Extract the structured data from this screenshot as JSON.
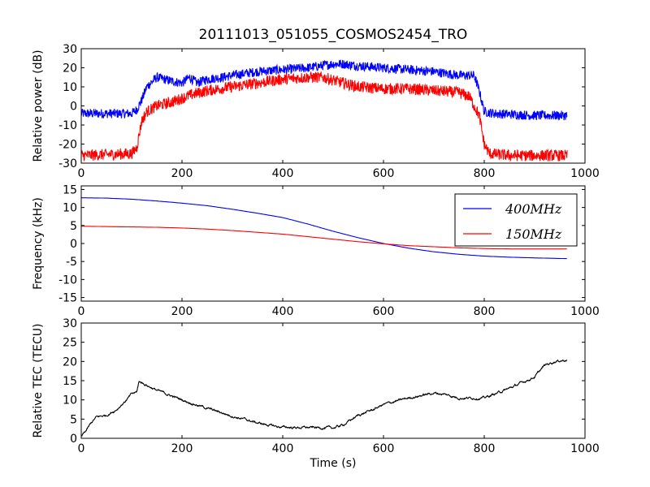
{
  "title": "20111013_051055_COSMOS2454_TRO",
  "chart_data": [
    {
      "type": "line",
      "name": "relative-power",
      "ylabel": "Relative power (dB)",
      "xlabel": "",
      "xlim": [
        0,
        1000
      ],
      "ylim": [
        -30,
        30
      ],
      "xticks": [
        0,
        200,
        400,
        600,
        800,
        1000
      ],
      "yticks": [
        -30,
        -20,
        -10,
        0,
        10,
        20,
        30
      ],
      "series": [
        {
          "color": "#0000ff",
          "noise": 2.5,
          "x": [
            0,
            100,
            110,
            120,
            130,
            150,
            180,
            200,
            215,
            230,
            250,
            280,
            300,
            350,
            400,
            450,
            500,
            520,
            550,
            600,
            650,
            700,
            750,
            780,
            790,
            800,
            820,
            900,
            965
          ],
          "y": [
            -4,
            -4,
            -2,
            3,
            10,
            15,
            13,
            12,
            15,
            12,
            14,
            15,
            16,
            18,
            19,
            20,
            22,
            22,
            21,
            20,
            19,
            18,
            16,
            16,
            8,
            -3,
            -4,
            -5,
            -5
          ]
        },
        {
          "color": "#ff0000",
          "noise": 3,
          "x": [
            0,
            100,
            110,
            120,
            130,
            150,
            180,
            200,
            220,
            250,
            300,
            350,
            400,
            450,
            480,
            520,
            550,
            600,
            650,
            700,
            750,
            770,
            790,
            800,
            810,
            850,
            900,
            965
          ],
          "y": [
            -26,
            -25,
            -22,
            -8,
            -3,
            0,
            2,
            4,
            6,
            8,
            10,
            12,
            14,
            15,
            15,
            12,
            10,
            9,
            9,
            8,
            7,
            5,
            -5,
            -20,
            -25,
            -26,
            -26,
            -26
          ]
        }
      ]
    },
    {
      "type": "line",
      "name": "frequency",
      "ylabel": "Frequency (kHz)",
      "xlabel": "",
      "xlim": [
        0,
        1000
      ],
      "ylim": [
        -16,
        16
      ],
      "xticks": [
        0,
        200,
        400,
        600,
        800,
        1000
      ],
      "yticks": [
        -15,
        -10,
        -5,
        0,
        5,
        10,
        15
      ],
      "legend": "upper-right",
      "series": [
        {
          "name": "400MHz",
          "color": "#0000ff",
          "noise": 0,
          "x": [
            0,
            50,
            100,
            150,
            200,
            250,
            300,
            350,
            400,
            450,
            500,
            550,
            600,
            650,
            700,
            750,
            800,
            850,
            900,
            965
          ],
          "y": [
            12.7,
            12.6,
            12.3,
            11.8,
            11.2,
            10.5,
            9.5,
            8.4,
            7.2,
            5.4,
            3.4,
            1.6,
            0.0,
            -1.3,
            -2.3,
            -3.0,
            -3.5,
            -3.8,
            -4.0,
            -4.2
          ]
        },
        {
          "name": "150MHz",
          "color": "#ff0000",
          "noise": 0,
          "x": [
            0,
            50,
            100,
            150,
            200,
            250,
            300,
            350,
            400,
            450,
            500,
            550,
            600,
            650,
            700,
            750,
            800,
            850,
            900,
            965
          ],
          "y": [
            4.8,
            4.7,
            4.6,
            4.5,
            4.3,
            4.0,
            3.6,
            3.1,
            2.6,
            1.9,
            1.2,
            0.5,
            -0.1,
            -0.6,
            -0.9,
            -1.2,
            -1.4,
            -1.5,
            -1.5,
            -1.5
          ]
        }
      ]
    },
    {
      "type": "line",
      "name": "relative-tec",
      "ylabel": "Relative TEC (TECU)",
      "xlabel": "Time (s)",
      "xlim": [
        0,
        1000
      ],
      "ylim": [
        0,
        30
      ],
      "xticks": [
        0,
        200,
        400,
        600,
        800,
        1000
      ],
      "yticks": [
        0,
        5,
        10,
        15,
        20,
        25,
        30
      ],
      "series": [
        {
          "color": "#000000",
          "noise": 0.35,
          "x": [
            0,
            10,
            20,
            30,
            50,
            70,
            90,
            100,
            110,
            115,
            120,
            150,
            200,
            250,
            300,
            350,
            390,
            420,
            450,
            500,
            520,
            550,
            580,
            600,
            650,
            700,
            720,
            750,
            800,
            850,
            900,
            920,
            940,
            965
          ],
          "y": [
            0.5,
            2,
            4,
            5.5,
            6,
            7.5,
            10,
            11.5,
            12,
            14.8,
            14.5,
            12.5,
            10,
            7.8,
            5.8,
            4,
            3,
            2.8,
            2.8,
            2.7,
            3.5,
            6,
            7.5,
            8.8,
            10.5,
            11.8,
            11.5,
            10.5,
            10.5,
            13,
            16,
            19,
            20,
            20.5
          ]
        }
      ]
    }
  ]
}
